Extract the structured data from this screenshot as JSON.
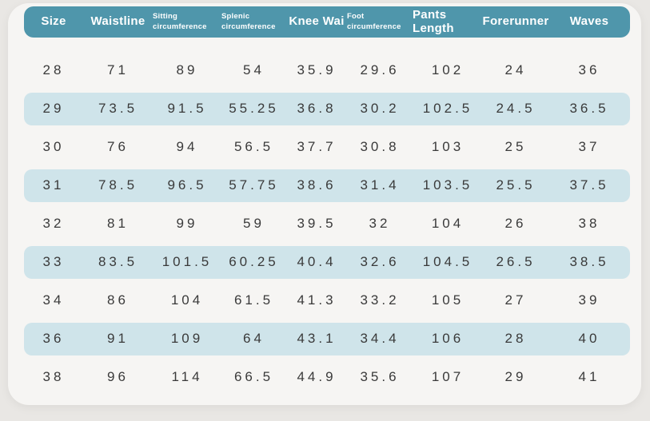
{
  "style": {
    "page_background": "#e9e7e4",
    "card_background": "#f6f5f3",
    "header_background": "#4f96ab",
    "header_text_color": "#ffffff",
    "highlight_row_color": "#cfe4ea",
    "cell_text_color": "#3a3a3a"
  },
  "chart_data": {
    "type": "table",
    "title": "",
    "columns": [
      "Size",
      "Waistline",
      "Sitting circumference",
      "Splenic circumference",
      "Knee Wai",
      "Foot circumference",
      "Pants Length",
      "Forerunner",
      "Waves"
    ],
    "small_header_columns": [
      2,
      3,
      5
    ],
    "highlighted_row_indices": [
      1,
      3,
      5,
      7
    ],
    "rows": [
      [
        "28",
        "71",
        "89",
        "54",
        "35.9",
        "29.6",
        "102",
        "24",
        "36"
      ],
      [
        "29",
        "73.5",
        "91.5",
        "55.25",
        "36.8",
        "30.2",
        "102.5",
        "24.5",
        "36.5"
      ],
      [
        "30",
        "76",
        "94",
        "56.5",
        "37.7",
        "30.8",
        "103",
        "25",
        "37"
      ],
      [
        "31",
        "78.5",
        "96.5",
        "57.75",
        "38.6",
        "31.4",
        "103.5",
        "25.5",
        "37.5"
      ],
      [
        "32",
        "81",
        "99",
        "59",
        "39.5",
        "32",
        "104",
        "26",
        "38"
      ],
      [
        "33",
        "83.5",
        "101.5",
        "60.25",
        "40.4",
        "32.6",
        "104.5",
        "26.5",
        "38.5"
      ],
      [
        "34",
        "86",
        "104",
        "61.5",
        "41.3",
        "33.2",
        "105",
        "27",
        "39"
      ],
      [
        "36",
        "91",
        "109",
        "64",
        "43.1",
        "34.4",
        "106",
        "28",
        "40"
      ],
      [
        "38",
        "96",
        "114",
        "66.5",
        "44.9",
        "35.6",
        "107",
        "29",
        "41"
      ]
    ]
  }
}
